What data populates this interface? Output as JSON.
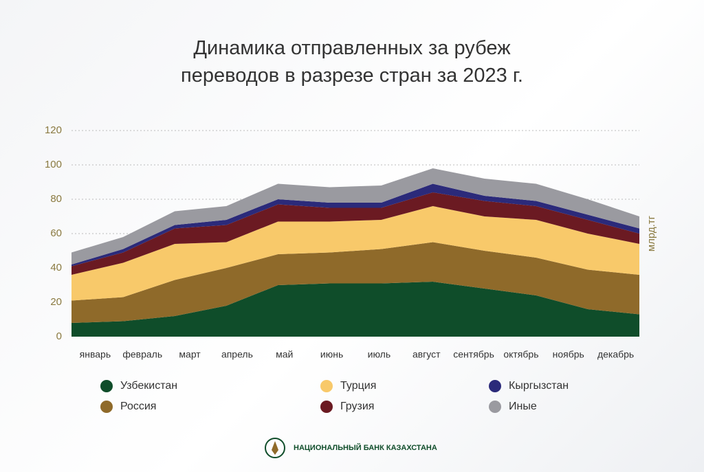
{
  "chart_data": {
    "type": "stacked_area",
    "title": "Динамика отправленных за рубеж переводов в разрезе стран за 2023 г.",
    "y_axis_label": "млрд.тг",
    "categories": [
      "январь",
      "февраль",
      "март",
      "апрель",
      "май",
      "июнь",
      "июль",
      "август",
      "сентябрь",
      "октябрь",
      "ноябрь",
      "декабрь"
    ],
    "series": [
      {
        "name": "Узбекистан",
        "color": "#0f4d2a",
        "values": [
          8,
          9,
          12,
          18,
          30,
          31,
          31,
          32,
          28,
          24,
          16,
          13
        ]
      },
      {
        "name": "Россия",
        "color": "#8f6a2a",
        "values": [
          13,
          14,
          21,
          22,
          18,
          18,
          20,
          23,
          22,
          22,
          23,
          23
        ]
      },
      {
        "name": "Турция",
        "color": "#f8c96a",
        "values": [
          15,
          20,
          21,
          15,
          19,
          18,
          17,
          21,
          20,
          22,
          21,
          18
        ]
      },
      {
        "name": "Грузия",
        "color": "#6b1a22",
        "values": [
          5,
          6,
          9,
          10,
          10,
          8,
          7,
          8,
          9,
          8,
          8,
          6
        ]
      },
      {
        "name": "Кыргызстан",
        "color": "#2b2a7a",
        "values": [
          1,
          2,
          2,
          3,
          3,
          3,
          3,
          5,
          3,
          3,
          3,
          3
        ]
      },
      {
        "name": "Иные",
        "color": "#9a9aa0",
        "values": [
          7,
          7,
          8,
          8,
          9,
          9,
          10,
          9,
          10,
          10,
          9,
          7
        ]
      }
    ],
    "ylim": [
      0,
      120
    ],
    "yticks": [
      0,
      20,
      40,
      60,
      80,
      100,
      120
    ],
    "grid": true,
    "footer": "НАЦИОНАЛЬНЫЙ БАНК КАЗАХСТАНА"
  }
}
